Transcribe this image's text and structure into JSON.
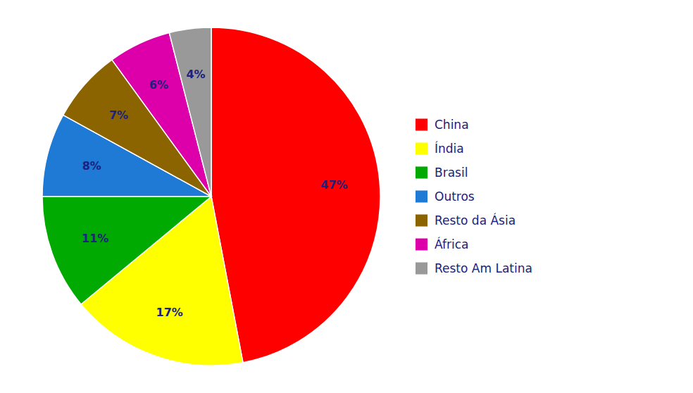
{
  "chart_data": {
    "type": "pie",
    "categories": [
      "China",
      "Índia",
      "Brasil",
      "Outros",
      "Resto da Ásia",
      "África",
      "Resto Am Latina"
    ],
    "values": [
      47,
      17,
      11,
      8,
      7,
      6,
      4
    ],
    "value_labels": [
      "47%",
      "17%",
      "11%",
      "8%",
      "7%",
      "6%",
      "4%"
    ],
    "colors": [
      "#ff0000",
      "#ffff00",
      "#00aa00",
      "#1e7ad4",
      "#8b6400",
      "#dd00aa",
      "#999999"
    ],
    "data_labels": true,
    "legend": "right"
  }
}
